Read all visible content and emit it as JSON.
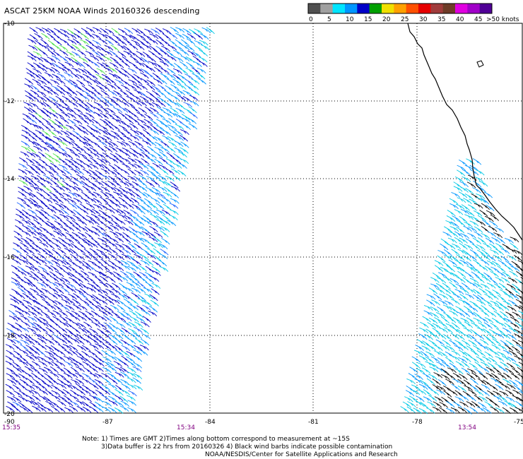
{
  "title": "ASCAT 25KM NOAA Winds 20160326 descending",
  "legend": {
    "units_label": ">50 knots",
    "ticks": [
      "0",
      "5",
      "10",
      "15",
      "20",
      "25",
      "30",
      "35",
      "40",
      "45"
    ],
    "colors": [
      "#505050",
      "#a0a0a0",
      "#00e5ff",
      "#0096ff",
      "#0000c8",
      "#00a000",
      "#f0e000",
      "#ffa000",
      "#ff5000",
      "#e60000",
      "#a03c3c",
      "#6e3c28",
      "#e000e0",
      "#a000c8",
      "#500096"
    ]
  },
  "lat_labels": [
    "-10",
    "-12",
    "-14",
    "-16",
    "-18",
    "-20"
  ],
  "lon_labels": [
    "-90",
    "-87",
    "-84",
    "-81",
    "-78",
    "-75"
  ],
  "times": [
    "15:35",
    "15:34",
    "13:54"
  ],
  "notes": {
    "line1": "Note: 1) Times are GMT 2)Times along bottom correspond to measurement at ~15S",
    "line2": "3)Data buffer is 22 hrs from 20160326 4) Black wind barbs indicate possible contamination",
    "line3": "NOAA/NESDIS/Center for Satellite Applications and Research"
  }
}
